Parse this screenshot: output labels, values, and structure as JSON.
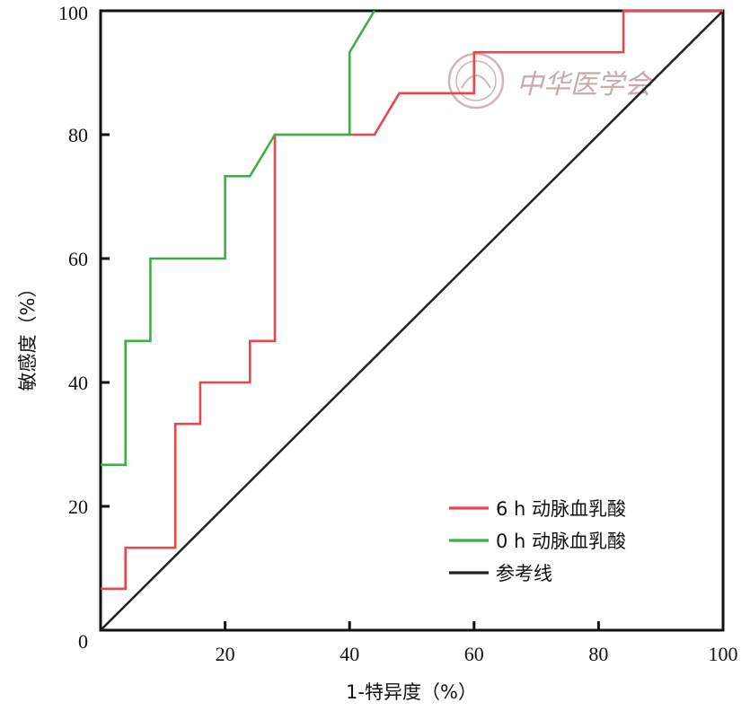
{
  "watermark": {
    "text": "中华医学会"
  },
  "chart_data": {
    "type": "line",
    "xlabel": "1-特异度（%）",
    "ylabel": "敏感度（%）",
    "xlim": [
      0,
      100
    ],
    "ylim": [
      0,
      100
    ],
    "x_ticks": [
      "20",
      "40",
      "60",
      "80",
      "100"
    ],
    "y_ticks": [
      "0",
      "20",
      "40",
      "60",
      "80",
      "100"
    ],
    "grid": false,
    "legend_position": "bottom-right",
    "series": [
      {
        "name": "6 h 动脉血乳酸",
        "color": "#e8474c",
        "points": [
          [
            0,
            6.7
          ],
          [
            4,
            6.7
          ],
          [
            4,
            13.3
          ],
          [
            12,
            13.3
          ],
          [
            12,
            33.3
          ],
          [
            16,
            33.3
          ],
          [
            16,
            40
          ],
          [
            24,
            40
          ],
          [
            24,
            46.7
          ],
          [
            28,
            46.7
          ],
          [
            28,
            80
          ],
          [
            40,
            80
          ],
          [
            44,
            80
          ],
          [
            48,
            86.7
          ],
          [
            60,
            86.7
          ],
          [
            60,
            93.3
          ],
          [
            84,
            93.3
          ],
          [
            84,
            100
          ],
          [
            100,
            100
          ]
        ]
      },
      {
        "name": "0 h 动脉血乳酸",
        "color": "#3fae49",
        "points": [
          [
            0,
            26.7
          ],
          [
            4,
            26.7
          ],
          [
            4,
            46.7
          ],
          [
            8,
            46.7
          ],
          [
            8,
            60
          ],
          [
            20,
            60
          ],
          [
            20,
            73.3
          ],
          [
            24,
            73.3
          ],
          [
            28,
            80
          ],
          [
            40,
            80
          ],
          [
            40,
            93.3
          ],
          [
            44,
            100
          ]
        ]
      },
      {
        "name": "参考线",
        "color": "#222222",
        "points": [
          [
            0,
            0
          ],
          [
            100,
            100
          ]
        ]
      }
    ]
  }
}
